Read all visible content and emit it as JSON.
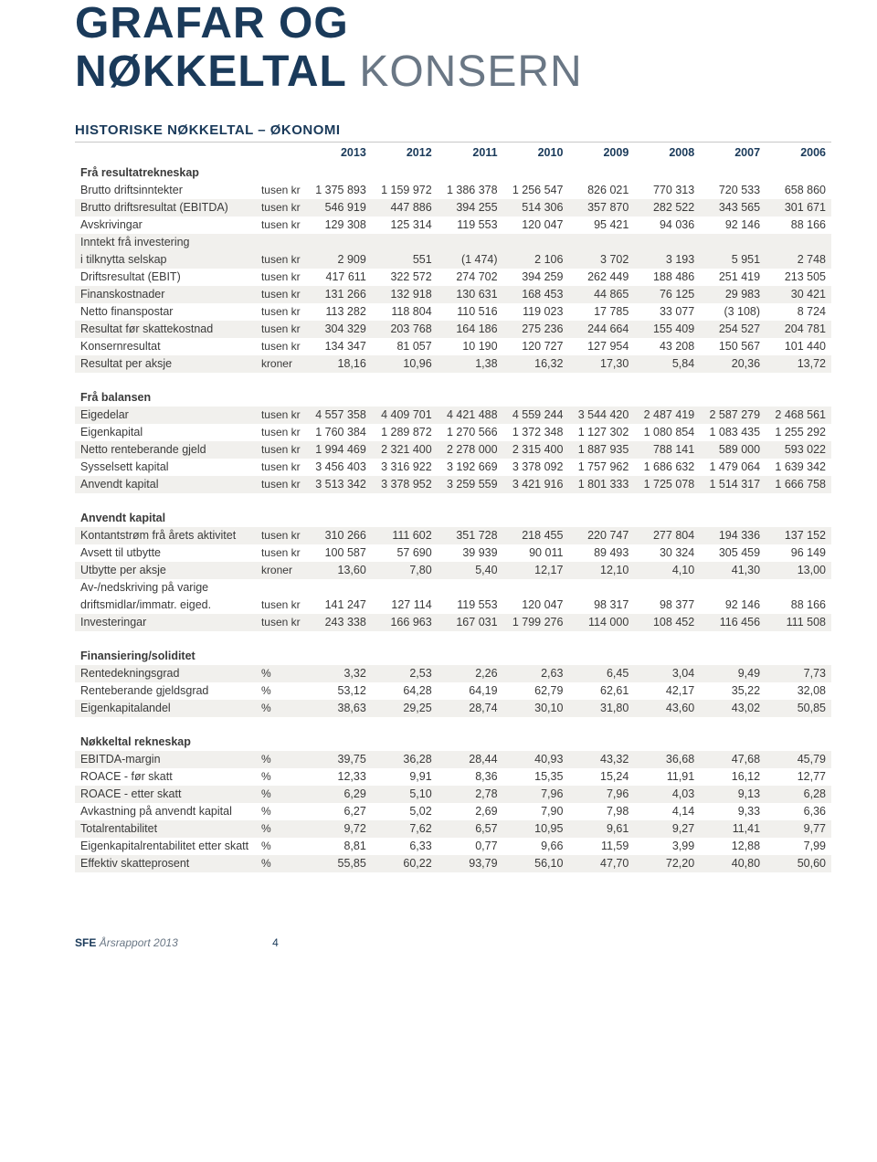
{
  "title": {
    "line1": "GRAFAR OG",
    "bold2": "NØKKELTAL",
    "thin2": "KONSERN"
  },
  "subtitle": "HISTORISKE NØKKELTAL – ØKONOMI",
  "years": [
    "2013",
    "2012",
    "2011",
    "2010",
    "2009",
    "2008",
    "2007",
    "2006"
  ],
  "sections": [
    {
      "name": "Frå resultatrekneskap",
      "rows": [
        {
          "label": "Brutto driftsinntekter",
          "unit": "tusen kr",
          "v": [
            "1 375 893",
            "1 159 972",
            "1 386 378",
            "1 256 547",
            "826 021",
            "770 313",
            "720 533",
            "658 860"
          ],
          "stripe": false
        },
        {
          "label": "Brutto driftsresultat (EBITDA)",
          "unit": "tusen kr",
          "v": [
            "546 919",
            "447 886",
            "394 255",
            "514 306",
            "357 870",
            "282 522",
            "343 565",
            "301 671"
          ],
          "stripe": true
        },
        {
          "label": "Avskrivingar",
          "unit": "tusen kr",
          "v": [
            "129 308",
            "125 314",
            "119 553",
            "120 047",
            "95 421",
            "94 036",
            "92 146",
            "88 166"
          ],
          "stripe": false
        },
        {
          "label": "Inntekt frå investering",
          "unit": "",
          "v": [
            "",
            "",
            "",
            "",
            "",
            "",
            "",
            ""
          ],
          "stripe": true
        },
        {
          "label": "i tilknytta selskap",
          "unit": "tusen kr",
          "v": [
            "2 909",
            "551",
            "(1 474)",
            "2 106",
            "3 702",
            "3 193",
            "5 951",
            "2 748"
          ],
          "stripe": true
        },
        {
          "label": "Driftsresultat (EBIT)",
          "unit": "tusen kr",
          "v": [
            "417 611",
            "322 572",
            "274 702",
            "394 259",
            "262 449",
            "188 486",
            "251 419",
            "213 505"
          ],
          "stripe": false
        },
        {
          "label": "Finanskostnader",
          "unit": "tusen kr",
          "v": [
            "131 266",
            "132 918",
            "130 631",
            "168 453",
            "44 865",
            "76 125",
            "29 983",
            "30 421"
          ],
          "stripe": true
        },
        {
          "label": "Netto finanspostar",
          "unit": "tusen kr",
          "v": [
            "113 282",
            "118 804",
            "110 516",
            "119 023",
            "17 785",
            "33 077",
            "(3 108)",
            "8 724"
          ],
          "stripe": false
        },
        {
          "label": "Resultat før skattekostnad",
          "unit": "tusen kr",
          "v": [
            "304 329",
            "203 768",
            "164 186",
            "275 236",
            "244 664",
            "155 409",
            "254 527",
            "204 781"
          ],
          "stripe": true
        },
        {
          "label": "Konsernresultat",
          "unit": "tusen kr",
          "v": [
            "134 347",
            "81 057",
            "10 190",
            "120 727",
            "127 954",
            "43 208",
            "150 567",
            "101 440"
          ],
          "stripe": false
        },
        {
          "label": "Resultat per aksje",
          "unit": "kroner",
          "v": [
            "18,16",
            "10,96",
            "1,38",
            "16,32",
            "17,30",
            "5,84",
            "20,36",
            "13,72"
          ],
          "stripe": true
        }
      ]
    },
    {
      "name": "Frå balansen",
      "rows": [
        {
          "label": "Eigedelar",
          "unit": "tusen kr",
          "v": [
            "4 557 358",
            "4 409 701",
            "4 421 488",
            "4 559 244",
            "3 544 420",
            "2 487 419",
            "2 587 279",
            "2 468 561"
          ],
          "stripe": true
        },
        {
          "label": "Eigenkapital",
          "unit": "tusen kr",
          "v": [
            "1 760 384",
            "1 289 872",
            "1 270 566",
            "1 372 348",
            "1 127 302",
            "1 080 854",
            "1 083 435",
            "1 255 292"
          ],
          "stripe": false
        },
        {
          "label": "Netto renteberande gjeld",
          "unit": "tusen kr",
          "v": [
            "1 994 469",
            "2 321 400",
            "2 278 000",
            "2 315 400",
            "1 887 935",
            "788 141",
            "589 000",
            "593 022"
          ],
          "stripe": true
        },
        {
          "label": "Sysselsett kapital",
          "unit": "tusen kr",
          "v": [
            "3 456 403",
            "3 316 922",
            "3 192 669",
            "3 378 092",
            "1 757 962",
            "1 686 632",
            "1 479 064",
            "1 639 342"
          ],
          "stripe": false
        },
        {
          "label": "Anvendt kapital",
          "unit": "tusen kr",
          "v": [
            "3 513 342",
            "3 378 952",
            "3 259 559",
            "3 421 916",
            "1 801 333",
            "1 725 078",
            "1 514 317",
            "1 666 758"
          ],
          "stripe": true
        }
      ]
    },
    {
      "name": "Anvendt kapital",
      "rows": [
        {
          "label": "Kontantstrøm frå årets aktivitet",
          "unit": "tusen kr",
          "v": [
            "310 266",
            "111 602",
            "351 728",
            "218 455",
            "220 747",
            "277 804",
            "194 336",
            "137 152"
          ],
          "stripe": true
        },
        {
          "label": "Avsett til utbytte",
          "unit": "tusen kr",
          "v": [
            "100 587",
            "57 690",
            "39 939",
            "90 011",
            "89 493",
            "30 324",
            "305 459",
            "96 149"
          ],
          "stripe": false
        },
        {
          "label": "Utbytte per aksje",
          "unit": "kroner",
          "v": [
            "13,60",
            "7,80",
            "5,40",
            "12,17",
            "12,10",
            "4,10",
            "41,30",
            "13,00"
          ],
          "stripe": true
        },
        {
          "label": "Av-/nedskriving på varige",
          "unit": "",
          "v": [
            "",
            "",
            "",
            "",
            "",
            "",
            "",
            ""
          ],
          "stripe": false
        },
        {
          "label": "driftsmidlar/immatr. eiged.",
          "unit": "tusen kr",
          "v": [
            "141 247",
            "127 114",
            "119 553",
            "120 047",
            "98 317",
            "98 377",
            "92 146",
            "88 166"
          ],
          "stripe": false
        },
        {
          "label": "Investeringar",
          "unit": "tusen kr",
          "v": [
            "243 338",
            "166 963",
            "167 031",
            "1 799 276",
            "114 000",
            "108 452",
            "116 456",
            "111 508"
          ],
          "stripe": true
        }
      ]
    },
    {
      "name": "Finansiering/soliditet",
      "rows": [
        {
          "label": "Rentedekningsgrad",
          "unit": "%",
          "v": [
            "3,32",
            "2,53",
            "2,26",
            "2,63",
            "6,45",
            "3,04",
            "9,49",
            "7,73"
          ],
          "stripe": true
        },
        {
          "label": "Renteberande gjeldsgrad",
          "unit": "%",
          "v": [
            "53,12",
            "64,28",
            "64,19",
            "62,79",
            "62,61",
            "42,17",
            "35,22",
            "32,08"
          ],
          "stripe": false
        },
        {
          "label": "Eigenkapitalandel",
          "unit": "%",
          "v": [
            "38,63",
            "29,25",
            "28,74",
            "30,10",
            "31,80",
            "43,60",
            "43,02",
            "50,85"
          ],
          "stripe": true
        }
      ]
    },
    {
      "name": "Nøkkeltal rekneskap",
      "rows": [
        {
          "label": "EBITDA-margin",
          "unit": "%",
          "v": [
            "39,75",
            "36,28",
            "28,44",
            "40,93",
            "43,32",
            "36,68",
            "47,68",
            "45,79"
          ],
          "stripe": true
        },
        {
          "label": "ROACE - før skatt",
          "unit": "%",
          "v": [
            "12,33",
            "9,91",
            "8,36",
            "15,35",
            "15,24",
            "11,91",
            "16,12",
            "12,77"
          ],
          "stripe": false
        },
        {
          "label": "ROACE - etter skatt",
          "unit": "%",
          "v": [
            "6,29",
            "5,10",
            "2,78",
            "7,96",
            "7,96",
            "4,03",
            "9,13",
            "6,28"
          ],
          "stripe": true
        },
        {
          "label": "Avkastning på anvendt kapital",
          "unit": "%",
          "v": [
            "6,27",
            "5,02",
            "2,69",
            "7,90",
            "7,98",
            "4,14",
            "9,33",
            "6,36"
          ],
          "stripe": false
        },
        {
          "label": "Totalrentabilitet",
          "unit": "%",
          "v": [
            "9,72",
            "7,62",
            "6,57",
            "10,95",
            "9,61",
            "9,27",
            "11,41",
            "9,77"
          ],
          "stripe": true
        },
        {
          "label": "Eigenkapitalrentabilitet etter skatt",
          "unit": "%",
          "v": [
            "8,81",
            "6,33",
            "0,77",
            "9,66",
            "11,59",
            "3,99",
            "12,88",
            "7,99"
          ],
          "stripe": false
        },
        {
          "label": "Effektiv skatteprosent",
          "unit": "%",
          "v": [
            "55,85",
            "60,22",
            "93,79",
            "56,10",
            "47,70",
            "72,20",
            "40,80",
            "50,60"
          ],
          "stripe": true
        }
      ]
    }
  ],
  "footer": {
    "bold": "SFE",
    "light": "Årsrapport 2013",
    "page": "4"
  }
}
